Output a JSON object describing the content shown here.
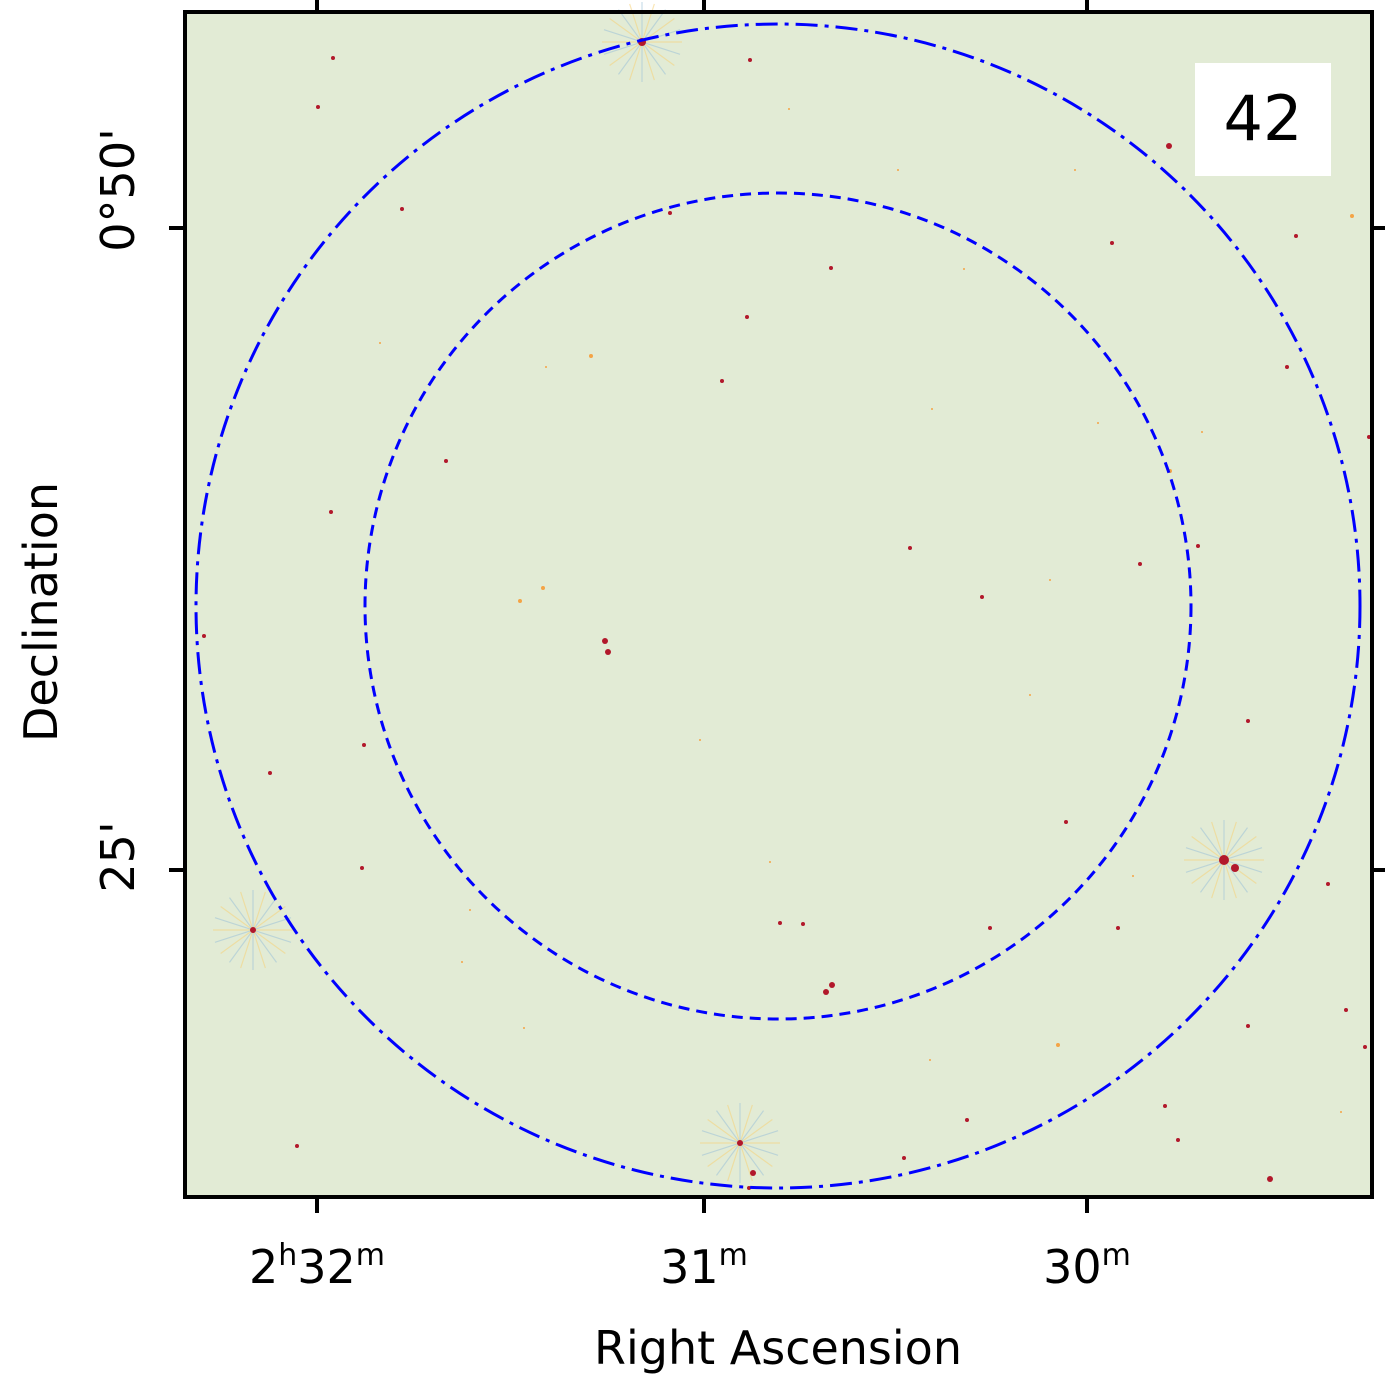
{
  "chart_data": {
    "type": "image",
    "panel_label": "42",
    "xlabel": "Right Ascension",
    "ylabel": "Declination",
    "x_ticks": [
      {
        "h": "2",
        "m": "32"
      },
      {
        "h": "",
        "m": "31"
      },
      {
        "h": "",
        "m": "30"
      }
    ],
    "y_ticks": [
      "0°50'",
      "25'"
    ],
    "ring_styles": [
      "dashed",
      "dash-dot"
    ],
    "colors": {
      "background": "#e2ebd5",
      "rings": "#0000ff",
      "frame": "#000000",
      "sources": "#b2182b",
      "faint_sources": "#f4a446"
    }
  }
}
